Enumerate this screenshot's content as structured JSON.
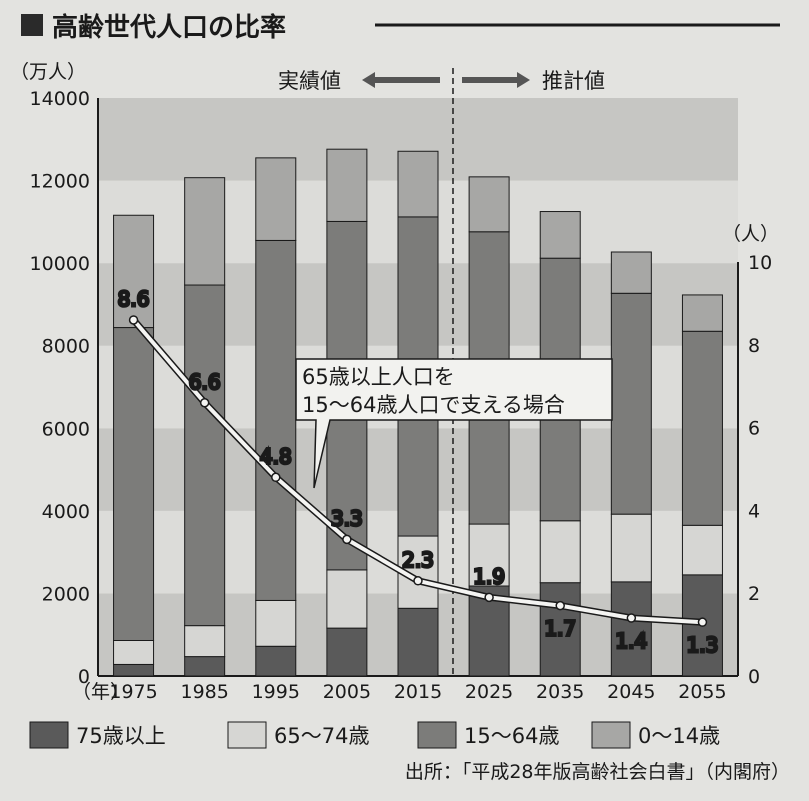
{
  "chart_data": {
    "type": "bar",
    "title": "高齢世代人口の比率",
    "left_axis_unit": "（万人）",
    "right_axis_unit": "（人）",
    "x_prefix": "（年）",
    "categories": [
      "1975",
      "1985",
      "1995",
      "2005",
      "2015",
      "2025",
      "2035",
      "2045",
      "2055"
    ],
    "left_ylim": [
      0,
      14000
    ],
    "left_ticks": [
      "0",
      "2000",
      "4000",
      "6000",
      "8000",
      "10000",
      "12000",
      "14000"
    ],
    "right_ylim": [
      0,
      10
    ],
    "right_ticks": [
      "0",
      "2",
      "4",
      "6",
      "8",
      "10"
    ],
    "series": [
      {
        "name": "75歳以上",
        "values": [
          280,
          470,
          720,
          1160,
          1640,
          2180,
          2260,
          2280,
          2450
        ],
        "color": "#5a5a5a"
      },
      {
        "name": "65～74歳",
        "values": [
          580,
          750,
          1110,
          1410,
          1750,
          1500,
          1500,
          1640,
          1200
        ],
        "color": "#d6d6d3"
      },
      {
        "name": "15～64歳",
        "values": [
          7580,
          8250,
          8720,
          8440,
          7730,
          7080,
          6360,
          5350,
          4700
        ],
        "color": "#7c7c7a"
      },
      {
        "name": "0～14歳",
        "values": [
          2720,
          2600,
          2000,
          1750,
          1590,
          1330,
          1130,
          1000,
          880
        ],
        "color": "#a7a7a5"
      }
    ],
    "line": {
      "name": "65歳以上人口を15～64歳人口で支える場合",
      "values": [
        8.6,
        6.6,
        4.8,
        3.3,
        2.3,
        1.9,
        1.7,
        1.4,
        1.3
      ],
      "labels": [
        "8.6",
        "6.6",
        "4.8",
        "3.3",
        "2.3",
        "1.9",
        "1.7",
        "1.4",
        "1.3"
      ]
    },
    "annotation_lines": [
      "65歳以上人口を",
      "15～64歳人口で支える場合"
    ],
    "era_left": "実績値",
    "era_right": "推計値",
    "source": "出所：「平成28年版高齢社会白書」（内閣府）"
  }
}
